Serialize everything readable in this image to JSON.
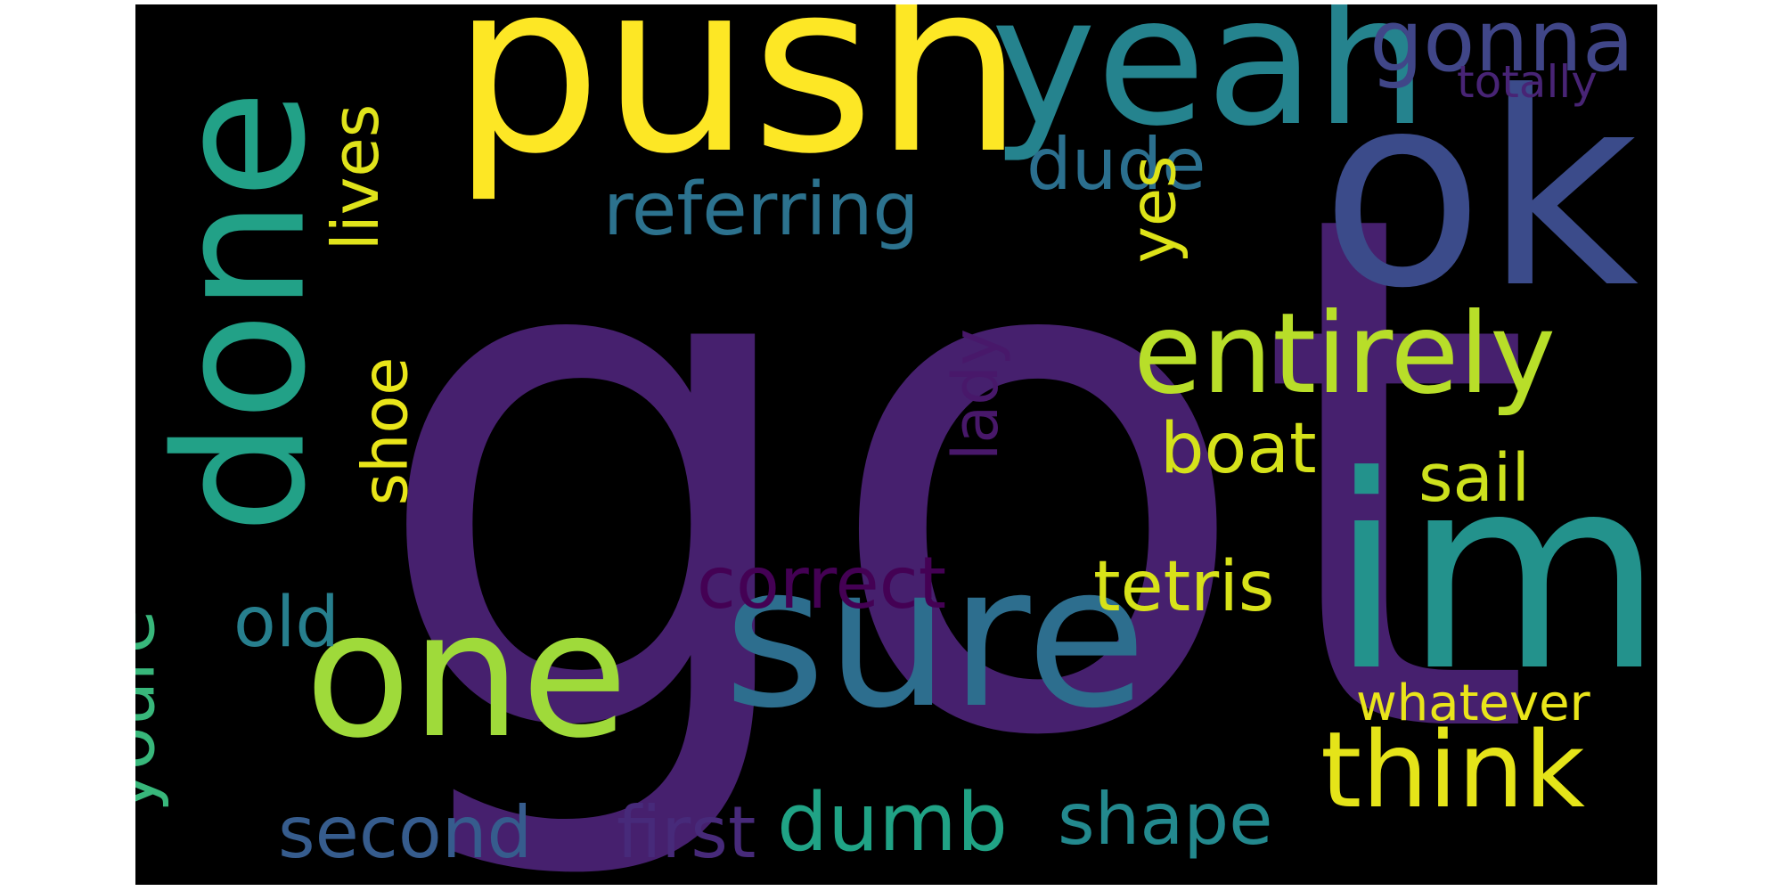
{
  "word_cloud": {
    "background": "#000000",
    "words": [
      {
        "text": "got",
        "color": "#46206e"
      },
      {
        "text": "push",
        "color": "#fde725"
      },
      {
        "text": "ok",
        "color": "#3b4b8a"
      },
      {
        "text": "done",
        "color": "#22a187"
      },
      {
        "text": "yeah",
        "color": "#25838e"
      },
      {
        "text": "sure",
        "color": "#2d6e8e"
      },
      {
        "text": "one",
        "color": "#9fda3a"
      },
      {
        "text": "im",
        "color": "#23928c"
      },
      {
        "text": "entirely",
        "color": "#b8de29"
      },
      {
        "text": "think",
        "color": "#e5e419"
      },
      {
        "text": "gonna",
        "color": "#404688"
      },
      {
        "text": "referring",
        "color": "#2c728e"
      },
      {
        "text": "dude",
        "color": "#2b6f8e"
      },
      {
        "text": "lives",
        "color": "#e0e31b"
      },
      {
        "text": "yes",
        "color": "#dee318"
      },
      {
        "text": "lady",
        "color": "#48186a"
      },
      {
        "text": "shoe",
        "color": "#e9e519"
      },
      {
        "text": "boat",
        "color": "#d5e21a"
      },
      {
        "text": "sail",
        "color": "#cde11d"
      },
      {
        "text": "tetris",
        "color": "#d8e219"
      },
      {
        "text": "correct",
        "color": "#440154"
      },
      {
        "text": "youre",
        "color": "#38b77b"
      },
      {
        "text": "old",
        "color": "#277f8e"
      },
      {
        "text": "whatever",
        "color": "#eae51a"
      },
      {
        "text": "second",
        "color": "#365c8d"
      },
      {
        "text": "first",
        "color": "#472a7a"
      },
      {
        "text": "dumb",
        "color": "#20a385"
      },
      {
        "text": "shape",
        "color": "#23898e"
      },
      {
        "text": "totally",
        "color": "#482475"
      }
    ]
  }
}
